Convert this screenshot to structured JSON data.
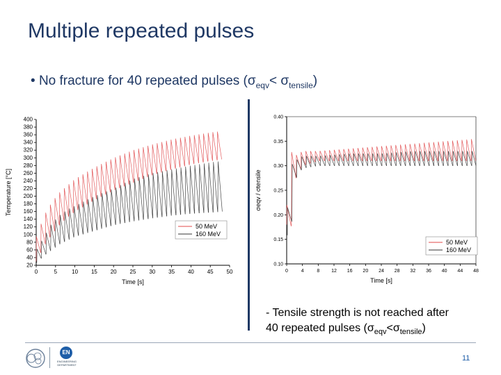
{
  "slide": {
    "title": "Multiple repeated pulses",
    "bullet": {
      "marker": "•",
      "text": "No fracture for 40 repeated pulses (σ",
      "sub1": "eqv",
      "mid": "< σ",
      "sub2": "tensile",
      "end": ")"
    },
    "note": {
      "line1": "- Tensile strength is not reached after",
      "line2": "40 repeated pulses (σ",
      "sub1": "eqv",
      "mid": "<σ",
      "sub2": "tensile",
      "end": ")"
    },
    "page_number": "11",
    "logo_en": {
      "badge": "EN",
      "line1": "ENGINEERING",
      "line2": "DEPARTMENT"
    }
  },
  "colors": {
    "title": "#1f3864",
    "series_50": "#e0484a",
    "series_160": "#333333",
    "accent": "#1f5ea8"
  },
  "chart_data": [
    {
      "type": "line",
      "title": "",
      "xlabel": "Time [s]",
      "ylabel": "Temperature [°C]",
      "xlim": [
        0,
        50
      ],
      "ylim": [
        20,
        400
      ],
      "xticks": [
        0,
        5,
        10,
        15,
        20,
        25,
        30,
        35,
        40,
        45,
        50
      ],
      "yticks": [
        20,
        40,
        60,
        80,
        100,
        120,
        140,
        160,
        180,
        200,
        220,
        240,
        260,
        280,
        300,
        320,
        340,
        360,
        380,
        400
      ],
      "grid": false,
      "legend_position": "bottom-right",
      "pulse_count": 40,
      "pulse_period_s": 1.2,
      "series": [
        {
          "name": "50 MeV",
          "color": "#e0484a",
          "peak_t": [
            0,
            2,
            4,
            6,
            8,
            10,
            15,
            20,
            25,
            30,
            35,
            40,
            45,
            48
          ],
          "peak_v": [
            95,
            150,
            185,
            210,
            228,
            245,
            275,
            300,
            320,
            335,
            348,
            358,
            366,
            370
          ],
          "trough_t": [
            0,
            2,
            4,
            6,
            8,
            10,
            15,
            20,
            25,
            30,
            35,
            40,
            45,
            48
          ],
          "trough_v": [
            30,
            70,
            100,
            125,
            145,
            160,
            190,
            215,
            235,
            255,
            270,
            283,
            292,
            296
          ]
        },
        {
          "name": "160 MeV",
          "color": "#333333",
          "peak_t": [
            0,
            2,
            4,
            6,
            8,
            10,
            15,
            20,
            25,
            30,
            35,
            40,
            45,
            48
          ],
          "peak_v": [
            60,
            95,
            130,
            150,
            165,
            175,
            200,
            220,
            245,
            260,
            270,
            280,
            288,
            292
          ],
          "trough_t": [
            0,
            2,
            4,
            6,
            8,
            10,
            15,
            20,
            25,
            30,
            35,
            40,
            45,
            48
          ],
          "trough_v": [
            25,
            45,
            60,
            75,
            85,
            95,
            110,
            125,
            135,
            143,
            150,
            155,
            158,
            160
          ]
        }
      ]
    },
    {
      "type": "line",
      "title": "",
      "xlabel": "Time [s]",
      "ylabel": "σeqv / σtensile",
      "xlim": [
        0,
        48
      ],
      "ylim": [
        0.1,
        0.4
      ],
      "xticks": [
        0,
        4,
        8,
        12,
        16,
        20,
        24,
        28,
        32,
        36,
        40,
        44,
        48
      ],
      "yticks": [
        0.1,
        0.15,
        0.2,
        0.25,
        0.3,
        0.35,
        0.4
      ],
      "grid": false,
      "legend_position": "bottom-right",
      "pulse_count": 40,
      "pulse_period_s": 1.2,
      "series": [
        {
          "name": "50 MeV",
          "color": "#e0484a",
          "peak_t": [
            0,
            1,
            2,
            4,
            8,
            16,
            24,
            32,
            40,
            48
          ],
          "peak_v": [
            0.22,
            0.33,
            0.32,
            0.33,
            0.33,
            0.335,
            0.34,
            0.345,
            0.35,
            0.355
          ],
          "trough_t": [
            0,
            1,
            2,
            4,
            8,
            16,
            24,
            32,
            40,
            48
          ],
          "trough_v": [
            0.18,
            0.16,
            0.27,
            0.3,
            0.31,
            0.31,
            0.31,
            0.31,
            0.31,
            0.31
          ]
        },
        {
          "name": "160 MeV",
          "color": "#333333",
          "peak_t": [
            0,
            1,
            2,
            4,
            8,
            16,
            24,
            32,
            40,
            48
          ],
          "peak_v": [
            0.2,
            0.3,
            0.31,
            0.32,
            0.32,
            0.325,
            0.325,
            0.33,
            0.33,
            0.33
          ],
          "trough_t": [
            0,
            1,
            2,
            4,
            8,
            16,
            24,
            32,
            40,
            48
          ],
          "trough_v": [
            0.16,
            0.15,
            0.27,
            0.295,
            0.3,
            0.3,
            0.3,
            0.3,
            0.3,
            0.3
          ]
        }
      ]
    }
  ]
}
